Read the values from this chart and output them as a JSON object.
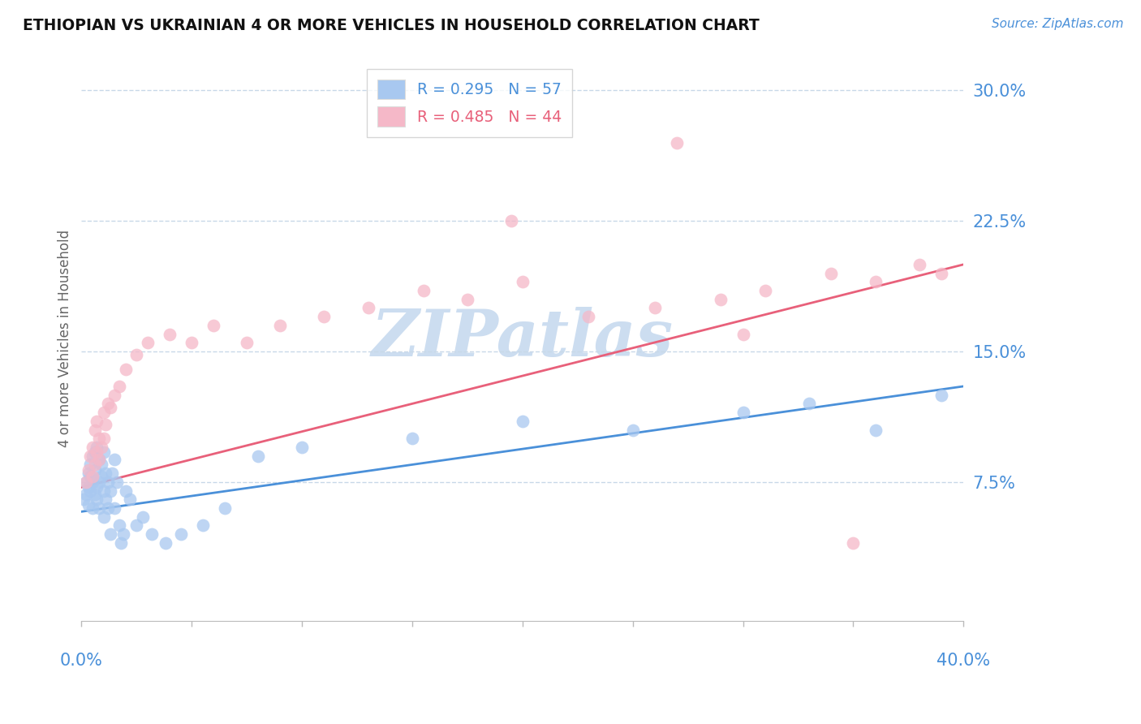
{
  "title": "ETHIOPIAN VS UKRAINIAN 4 OR MORE VEHICLES IN HOUSEHOLD CORRELATION CHART",
  "source_text": "Source: ZipAtlas.com",
  "ylabel": "4 or more Vehicles in Household",
  "ytick_labels": [
    "7.5%",
    "15.0%",
    "22.5%",
    "30.0%"
  ],
  "ytick_values": [
    0.075,
    0.15,
    0.225,
    0.3
  ],
  "xlim": [
    0.0,
    0.4
  ],
  "ylim": [
    -0.005,
    0.32
  ],
  "legend_entries": [
    {
      "label_r": "R = 0.295",
      "label_n": "N = 57",
      "color": "#a8c8f0"
    },
    {
      "label_r": "R = 0.485",
      "label_n": "N = 44",
      "color": "#f5b8c8"
    }
  ],
  "watermark": "ZIPatlas",
  "watermark_color": "#ccddf0",
  "ethiopian_color": "#a8c8f0",
  "ukrainian_color": "#f5b8c8",
  "ethiopian_line_color": "#4a90d9",
  "ukrainian_line_color": "#e8607a",
  "axis_color": "#4a90d9",
  "grid_color": "#c8d8e8",
  "background_color": "#ffffff",
  "eth_line_x0": 0.0,
  "eth_line_y0": 0.058,
  "eth_line_x1": 0.4,
  "eth_line_y1": 0.13,
  "ukr_line_x0": 0.0,
  "ukr_line_y0": 0.072,
  "ukr_line_x1": 0.4,
  "ukr_line_y1": 0.2,
  "ethiopians_x": [
    0.001,
    0.002,
    0.002,
    0.003,
    0.003,
    0.003,
    0.004,
    0.004,
    0.004,
    0.005,
    0.005,
    0.005,
    0.006,
    0.006,
    0.006,
    0.007,
    0.007,
    0.007,
    0.008,
    0.008,
    0.008,
    0.009,
    0.009,
    0.01,
    0.01,
    0.01,
    0.011,
    0.011,
    0.012,
    0.012,
    0.013,
    0.013,
    0.014,
    0.015,
    0.015,
    0.016,
    0.017,
    0.018,
    0.019,
    0.02,
    0.022,
    0.025,
    0.028,
    0.032,
    0.038,
    0.045,
    0.055,
    0.065,
    0.08,
    0.1,
    0.15,
    0.2,
    0.25,
    0.3,
    0.33,
    0.36,
    0.39
  ],
  "ethiopians_y": [
    0.065,
    0.075,
    0.068,
    0.072,
    0.08,
    0.062,
    0.085,
    0.07,
    0.078,
    0.09,
    0.06,
    0.075,
    0.092,
    0.068,
    0.082,
    0.095,
    0.072,
    0.065,
    0.088,
    0.075,
    0.06,
    0.078,
    0.085,
    0.092,
    0.07,
    0.055,
    0.08,
    0.065,
    0.075,
    0.06,
    0.07,
    0.045,
    0.08,
    0.088,
    0.06,
    0.075,
    0.05,
    0.04,
    0.045,
    0.07,
    0.065,
    0.05,
    0.055,
    0.045,
    0.04,
    0.045,
    0.05,
    0.06,
    0.09,
    0.095,
    0.1,
    0.11,
    0.105,
    0.115,
    0.12,
    0.105,
    0.125
  ],
  "ukrainians_x": [
    0.002,
    0.003,
    0.004,
    0.005,
    0.005,
    0.006,
    0.006,
    0.007,
    0.007,
    0.008,
    0.008,
    0.009,
    0.01,
    0.01,
    0.011,
    0.012,
    0.013,
    0.015,
    0.017,
    0.02,
    0.025,
    0.03,
    0.04,
    0.05,
    0.06,
    0.075,
    0.09,
    0.11,
    0.13,
    0.155,
    0.175,
    0.2,
    0.23,
    0.26,
    0.29,
    0.31,
    0.34,
    0.36,
    0.38,
    0.39,
    0.195,
    0.27,
    0.35,
    0.3
  ],
  "ukrainians_y": [
    0.075,
    0.082,
    0.09,
    0.078,
    0.095,
    0.085,
    0.105,
    0.092,
    0.11,
    0.1,
    0.088,
    0.095,
    0.115,
    0.1,
    0.108,
    0.12,
    0.118,
    0.125,
    0.13,
    0.14,
    0.148,
    0.155,
    0.16,
    0.155,
    0.165,
    0.155,
    0.165,
    0.17,
    0.175,
    0.185,
    0.18,
    0.19,
    0.17,
    0.175,
    0.18,
    0.185,
    0.195,
    0.19,
    0.2,
    0.195,
    0.225,
    0.27,
    0.04,
    0.16
  ]
}
